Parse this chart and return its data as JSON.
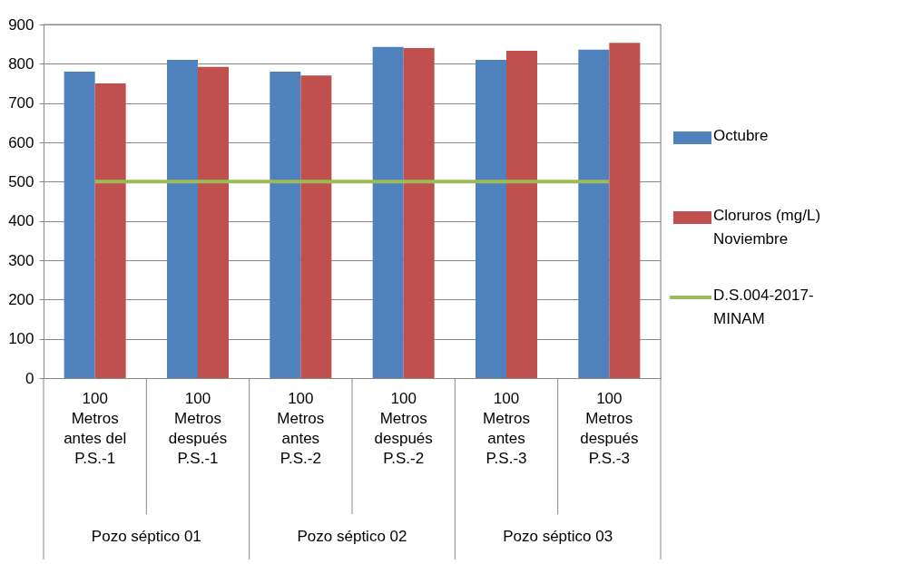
{
  "chart_data": {
    "type": "bar",
    "categories": [
      "100 Metros antes del P.S.-1",
      "100 Metros después P.S.-1",
      "100 Metros antes P.S.-2",
      "100 Metros después P.S.-2",
      "100 Metros antes P.S.-3",
      "100 Metros después P.S.-3"
    ],
    "series": [
      {
        "name": "Octubre",
        "color": "#4f81bd",
        "values": [
          780,
          810,
          780,
          843,
          810,
          836
        ]
      },
      {
        "name": "Cloruros (mg/L) Noviembre",
        "color": "#c0504d",
        "values": [
          750,
          792,
          770,
          840,
          833,
          853
        ]
      },
      {
        "name": "D.S.004-2017-MINAM",
        "type": "line",
        "color": "#9bbb59",
        "values": [
          500,
          500,
          500,
          500,
          500,
          500
        ]
      }
    ],
    "annotations": [
      "Pozo séptico 01",
      "Pozo séptico 02",
      "Pozo séptico 03"
    ],
    "ylim": [
      0,
      900
    ],
    "yticks": [
      0,
      100,
      200,
      300,
      400,
      500,
      600,
      700,
      800,
      900
    ],
    "grid": "y",
    "legend": "right"
  }
}
